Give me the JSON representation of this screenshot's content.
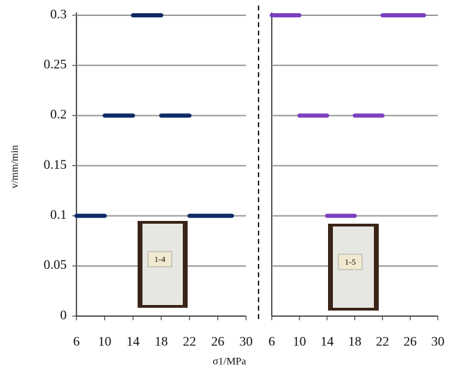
{
  "chart_data": {
    "type": "segment",
    "y_label": "v/mm/min",
    "x_label": "σ1/MPa",
    "ylim": [
      0,
      0.3
    ],
    "yticks": [
      0,
      0.05,
      0.1,
      0.15,
      0.2,
      0.25,
      0.3
    ],
    "xlim": [
      6,
      30
    ],
    "xticks": [
      6,
      10,
      14,
      18,
      22,
      26,
      30
    ],
    "grid": true,
    "panels": [
      {
        "color": "#0d2a66",
        "specimen_label": "1-4",
        "segments": [
          {
            "y": 0.3,
            "x0": 14,
            "x1": 18
          },
          {
            "y": 0.2,
            "x0": 10,
            "x1": 14
          },
          {
            "y": 0.2,
            "x0": 18,
            "x1": 22
          },
          {
            "y": 0.1,
            "x0": 6,
            "x1": 10
          },
          {
            "y": 0.1,
            "x0": 22,
            "x1": 28
          }
        ]
      },
      {
        "color": "#7b3fbf",
        "specimen_label": "1-5",
        "segments": [
          {
            "y": 0.3,
            "x0": 6,
            "x1": 10
          },
          {
            "y": 0.3,
            "x0": 22,
            "x1": 28
          },
          {
            "y": 0.2,
            "x0": 10,
            "x1": 14
          },
          {
            "y": 0.2,
            "x0": 18,
            "x1": 22
          },
          {
            "y": 0.1,
            "x0": 14,
            "x1": 18
          }
        ]
      }
    ]
  }
}
